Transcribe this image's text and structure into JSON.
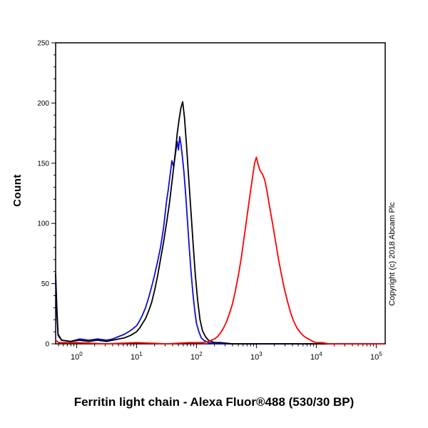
{
  "page": {
    "caption": "Ferritin light chain - Alexa Fluor®488 (530/30 BP)",
    "copyright": "Copyright (c) 2018 Abcam Plc"
  },
  "chart_data": {
    "type": "line",
    "subtype": "flow-cytometry-histogram-overlay",
    "title": "",
    "xlabel": "Alexa Fluor®488 (530/30 BP)",
    "ylabel": "Count",
    "x_scale": "log10",
    "xlim_log10": [
      -0.35,
      5.15
    ],
    "ylim": [
      0,
      250
    ],
    "y_ticks": [
      0,
      50,
      100,
      150,
      200,
      250
    ],
    "x_major_ticks_exponents": [
      0,
      1,
      2,
      3,
      4,
      5
    ],
    "grid": false,
    "legend": "none",
    "series": [
      {
        "name": "blue",
        "color": "#0d0dd6",
        "points": [
          [
            -0.35,
            52
          ],
          [
            -0.33,
            24
          ],
          [
            -0.31,
            7
          ],
          [
            -0.25,
            3
          ],
          [
            -0.1,
            2
          ],
          [
            0.05,
            4
          ],
          [
            0.2,
            3
          ],
          [
            0.35,
            4
          ],
          [
            0.5,
            3
          ],
          [
            0.6,
            4
          ],
          [
            0.7,
            6
          ],
          [
            0.8,
            8
          ],
          [
            0.9,
            11
          ],
          [
            1.0,
            15
          ],
          [
            1.05,
            19
          ],
          [
            1.1,
            24
          ],
          [
            1.15,
            30
          ],
          [
            1.2,
            38
          ],
          [
            1.25,
            47
          ],
          [
            1.3,
            57
          ],
          [
            1.35,
            68
          ],
          [
            1.4,
            80
          ],
          [
            1.45,
            96
          ],
          [
            1.5,
            118
          ],
          [
            1.53,
            128
          ],
          [
            1.56,
            140
          ],
          [
            1.59,
            152
          ],
          [
            1.62,
            147
          ],
          [
            1.65,
            158
          ],
          [
            1.68,
            168
          ],
          [
            1.7,
            161
          ],
          [
            1.72,
            172
          ],
          [
            1.74,
            166
          ],
          [
            1.76,
            158
          ],
          [
            1.79,
            143
          ],
          [
            1.82,
            124
          ],
          [
            1.85,
            102
          ],
          [
            1.88,
            80
          ],
          [
            1.91,
            60
          ],
          [
            1.94,
            42
          ],
          [
            1.97,
            28
          ],
          [
            2.0,
            17
          ],
          [
            2.04,
            10
          ],
          [
            2.08,
            5
          ],
          [
            2.12,
            3
          ],
          [
            2.2,
            1
          ],
          [
            2.35,
            0
          ],
          [
            5.1,
            0
          ]
        ]
      },
      {
        "name": "black",
        "color": "#000000",
        "points": [
          [
            -0.35,
            58
          ],
          [
            -0.33,
            30
          ],
          [
            -0.31,
            8
          ],
          [
            -0.25,
            3
          ],
          [
            -0.1,
            2
          ],
          [
            0.05,
            3
          ],
          [
            0.2,
            2
          ],
          [
            0.35,
            3
          ],
          [
            0.5,
            2
          ],
          [
            0.6,
            3
          ],
          [
            0.7,
            4
          ],
          [
            0.8,
            5
          ],
          [
            0.9,
            7
          ],
          [
            1.0,
            10
          ],
          [
            1.05,
            13
          ],
          [
            1.1,
            17
          ],
          [
            1.15,
            21
          ],
          [
            1.2,
            27
          ],
          [
            1.25,
            34
          ],
          [
            1.3,
            44
          ],
          [
            1.35,
            56
          ],
          [
            1.4,
            70
          ],
          [
            1.45,
            84
          ],
          [
            1.5,
            100
          ],
          [
            1.55,
            117
          ],
          [
            1.6,
            138
          ],
          [
            1.65,
            160
          ],
          [
            1.68,
            175
          ],
          [
            1.71,
            186
          ],
          [
            1.74,
            196
          ],
          [
            1.77,
            201
          ],
          [
            1.8,
            188
          ],
          [
            1.83,
            168
          ],
          [
            1.86,
            146
          ],
          [
            1.9,
            116
          ],
          [
            1.94,
            86
          ],
          [
            1.98,
            58
          ],
          [
            2.02,
            36
          ],
          [
            2.06,
            20
          ],
          [
            2.1,
            11
          ],
          [
            2.15,
            6
          ],
          [
            2.2,
            3
          ],
          [
            2.3,
            1
          ],
          [
            2.4,
            1
          ],
          [
            2.6,
            0
          ],
          [
            5.1,
            0
          ]
        ]
      },
      {
        "name": "red",
        "color": "#ff0000",
        "points": [
          [
            -0.35,
            3
          ],
          [
            -0.3,
            1
          ],
          [
            0,
            1
          ],
          [
            0.5,
            0
          ],
          [
            1.0,
            1
          ],
          [
            1.5,
            0
          ],
          [
            1.9,
            1
          ],
          [
            2.1,
            1
          ],
          [
            2.2,
            2
          ],
          [
            2.3,
            4
          ],
          [
            2.35,
            6
          ],
          [
            2.4,
            9
          ],
          [
            2.45,
            13
          ],
          [
            2.5,
            18
          ],
          [
            2.55,
            25
          ],
          [
            2.6,
            33
          ],
          [
            2.65,
            44
          ],
          [
            2.7,
            57
          ],
          [
            2.75,
            72
          ],
          [
            2.8,
            90
          ],
          [
            2.85,
            108
          ],
          [
            2.9,
            126
          ],
          [
            2.94,
            140
          ],
          [
            2.97,
            150
          ],
          [
            3.0,
            155
          ],
          [
            3.03,
            149
          ],
          [
            3.06,
            144
          ],
          [
            3.1,
            141
          ],
          [
            3.14,
            136
          ],
          [
            3.18,
            126
          ],
          [
            3.22,
            114
          ],
          [
            3.27,
            100
          ],
          [
            3.32,
            85
          ],
          [
            3.37,
            70
          ],
          [
            3.42,
            57
          ],
          [
            3.47,
            45
          ],
          [
            3.52,
            35
          ],
          [
            3.57,
            26
          ],
          [
            3.62,
            19
          ],
          [
            3.68,
            13
          ],
          [
            3.74,
            9
          ],
          [
            3.8,
            6
          ],
          [
            3.87,
            4
          ],
          [
            3.94,
            2
          ],
          [
            4.0,
            1
          ],
          [
            4.1,
            1
          ],
          [
            4.2,
            0
          ],
          [
            5.1,
            0
          ]
        ]
      }
    ]
  }
}
